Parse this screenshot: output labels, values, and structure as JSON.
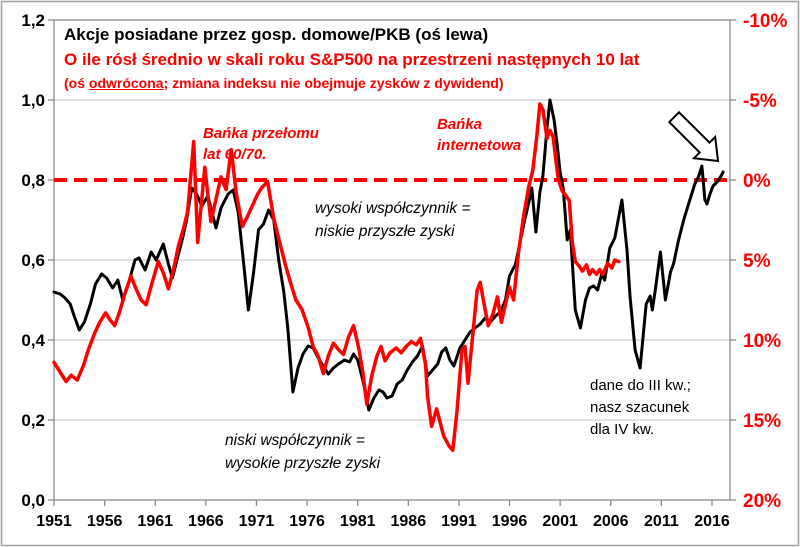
{
  "title": {
    "line1": "Akcje posiadane przez gosp. domowe/PKB (oś lewa)",
    "line2": "O ile rósł średnio w skali roku S&P500 na przestrzeni następnych 10 lat",
    "line3_prefix": "(oś ",
    "line3_underlined": "odwrócona",
    "line3_suffix": "; zmiana indeksu nie obejmuje zysków z dywidend)"
  },
  "annotations": {
    "bubble6070": [
      "Bańka przełomu",
      "lat 60/70."
    ],
    "internet": [
      "Bańka",
      "internetowa"
    ],
    "high_ratio": [
      "wysoki współczynnik =",
      "niskie przyszłe zyski"
    ],
    "low_ratio": [
      "niski współczynnik =",
      "wysokie przyszłe zyski"
    ],
    "note": [
      "dane do III kw.;",
      "nasz szacunek",
      "dla IV kw."
    ]
  },
  "colors": {
    "black_series": "#000000",
    "red_series": "#FF0000",
    "gridline": "#C6C6C6",
    "axis": "#8C8C8C",
    "figure_border": "#A0A0A0"
  },
  "chart_data": {
    "type": "line",
    "title": "Akcje posiadane przez gosp. domowe/PKB (oś lewa)",
    "subtitle": "O ile rósł średnio w skali roku S&P500 na przestrzeni następnych 10 lat (oś odwrócona; zmiana indeksu nie obejmuje zysków z dywidend)",
    "grid": true,
    "x_axis": {
      "years": [
        1951,
        1956,
        1961,
        1966,
        1971,
        1976,
        1981,
        1986,
        1991,
        1996,
        2001,
        2006,
        2011,
        2016
      ],
      "range": [
        1951,
        2017.8
      ]
    },
    "left_axis": {
      "labels": [
        "0,0",
        "0,2",
        "0,4",
        "0,6",
        "0,8",
        "1,0",
        "1,2"
      ],
      "values": [
        0,
        0.2,
        0.4,
        0.6,
        0.8,
        1.0,
        1.2
      ],
      "gridline_values": [
        0.2,
        0.4,
        0.6,
        1.0
      ],
      "range": [
        0,
        1.2
      ]
    },
    "right_axis": {
      "labels": [
        "-10%",
        "-5%",
        "0%",
        "5%",
        "10%",
        "15%",
        "20%"
      ],
      "values": [
        -10,
        -5,
        0,
        5,
        10,
        15,
        20
      ],
      "inverted": true,
      "range": [
        -10,
        20
      ]
    },
    "reference_line": {
      "left_value": 0.8,
      "right_value": 0,
      "label": "0%",
      "style": "dashed"
    },
    "series": [
      {
        "name": "Akcje posiadane przez gosp. domowe/PKB",
        "axis": "left",
        "color": "#000000",
        "width": 3,
        "points": [
          [
            1951.0,
            0.52
          ],
          [
            1951.6,
            0.515
          ],
          [
            1952.1,
            0.505
          ],
          [
            1952.6,
            0.49
          ],
          [
            1953.0,
            0.46
          ],
          [
            1953.5,
            0.425
          ],
          [
            1954.0,
            0.445
          ],
          [
            1954.6,
            0.49
          ],
          [
            1955.1,
            0.54
          ],
          [
            1955.7,
            0.565
          ],
          [
            1956.2,
            0.555
          ],
          [
            1956.8,
            0.53
          ],
          [
            1957.3,
            0.55
          ],
          [
            1957.8,
            0.5
          ],
          [
            1958.4,
            0.545
          ],
          [
            1959.0,
            0.6
          ],
          [
            1959.4,
            0.605
          ],
          [
            1960.0,
            0.575
          ],
          [
            1960.6,
            0.62
          ],
          [
            1961.1,
            0.6
          ],
          [
            1961.8,
            0.64
          ],
          [
            1962.3,
            0.59
          ],
          [
            1962.7,
            0.555
          ],
          [
            1963.2,
            0.605
          ],
          [
            1963.7,
            0.655
          ],
          [
            1964.1,
            0.7
          ],
          [
            1964.6,
            0.78
          ],
          [
            1965.1,
            0.765
          ],
          [
            1965.6,
            0.735
          ],
          [
            1966.2,
            0.76
          ],
          [
            1967.0,
            0.68
          ],
          [
            1967.5,
            0.73
          ],
          [
            1968.2,
            0.765
          ],
          [
            1968.7,
            0.775
          ],
          [
            1969.2,
            0.72
          ],
          [
            1969.7,
            0.6
          ],
          [
            1970.2,
            0.475
          ],
          [
            1970.7,
            0.565
          ],
          [
            1971.2,
            0.675
          ],
          [
            1971.7,
            0.69
          ],
          [
            1972.2,
            0.725
          ],
          [
            1972.7,
            0.7
          ],
          [
            1973.2,
            0.6
          ],
          [
            1973.7,
            0.52
          ],
          [
            1974.1,
            0.43
          ],
          [
            1974.6,
            0.27
          ],
          [
            1975.1,
            0.33
          ],
          [
            1975.6,
            0.365
          ],
          [
            1976.1,
            0.385
          ],
          [
            1976.6,
            0.38
          ],
          [
            1977.1,
            0.355
          ],
          [
            1977.6,
            0.335
          ],
          [
            1978.1,
            0.315
          ],
          [
            1978.6,
            0.33
          ],
          [
            1979.1,
            0.34
          ],
          [
            1979.7,
            0.35
          ],
          [
            1980.2,
            0.345
          ],
          [
            1980.6,
            0.365
          ],
          [
            1981.0,
            0.35
          ],
          [
            1981.5,
            0.3
          ],
          [
            1982.1,
            0.225
          ],
          [
            1982.6,
            0.255
          ],
          [
            1983.1,
            0.275
          ],
          [
            1983.5,
            0.27
          ],
          [
            1983.9,
            0.255
          ],
          [
            1984.4,
            0.26
          ],
          [
            1984.9,
            0.29
          ],
          [
            1985.4,
            0.3
          ],
          [
            1985.9,
            0.325
          ],
          [
            1986.4,
            0.345
          ],
          [
            1986.9,
            0.36
          ],
          [
            1987.4,
            0.385
          ],
          [
            1987.9,
            0.31
          ],
          [
            1988.4,
            0.325
          ],
          [
            1988.9,
            0.34
          ],
          [
            1989.3,
            0.37
          ],
          [
            1989.7,
            0.38
          ],
          [
            1990.1,
            0.35
          ],
          [
            1990.5,
            0.335
          ],
          [
            1991.1,
            0.38
          ],
          [
            1991.6,
            0.4
          ],
          [
            1992.1,
            0.42
          ],
          [
            1992.6,
            0.43
          ],
          [
            1993.1,
            0.44
          ],
          [
            1993.6,
            0.455
          ],
          [
            1994.1,
            0.445
          ],
          [
            1994.6,
            0.46
          ],
          [
            1995.1,
            0.47
          ],
          [
            1995.6,
            0.5
          ],
          [
            1996.0,
            0.56
          ],
          [
            1996.6,
            0.59
          ],
          [
            1997.0,
            0.64
          ],
          [
            1997.5,
            0.7
          ],
          [
            1998.0,
            0.755
          ],
          [
            1998.2,
            0.78
          ],
          [
            1998.6,
            0.67
          ],
          [
            1999.0,
            0.77
          ],
          [
            1999.3,
            0.81
          ],
          [
            1999.7,
            0.93
          ],
          [
            2000.0,
            1.0
          ],
          [
            2000.4,
            0.95
          ],
          [
            2000.7,
            0.89
          ],
          [
            2001.0,
            0.82
          ],
          [
            2001.3,
            0.78
          ],
          [
            2001.7,
            0.65
          ],
          [
            2002.0,
            0.675
          ],
          [
            2002.5,
            0.475
          ],
          [
            2003.0,
            0.43
          ],
          [
            2003.5,
            0.5
          ],
          [
            2003.9,
            0.53
          ],
          [
            2004.3,
            0.535
          ],
          [
            2004.7,
            0.525
          ],
          [
            2005.1,
            0.565
          ],
          [
            2005.4,
            0.55
          ],
          [
            2005.9,
            0.63
          ],
          [
            2006.4,
            0.655
          ],
          [
            2007.1,
            0.75
          ],
          [
            2007.6,
            0.625
          ],
          [
            2007.9,
            0.51
          ],
          [
            2008.4,
            0.375
          ],
          [
            2008.9,
            0.33
          ],
          [
            2009.5,
            0.49
          ],
          [
            2009.9,
            0.51
          ],
          [
            2010.1,
            0.475
          ],
          [
            2010.4,
            0.525
          ],
          [
            2010.9,
            0.62
          ],
          [
            2011.4,
            0.5
          ],
          [
            2011.9,
            0.57
          ],
          [
            2012.2,
            0.59
          ],
          [
            2012.7,
            0.65
          ],
          [
            2013.2,
            0.7
          ],
          [
            2013.5,
            0.725
          ],
          [
            2014.0,
            0.765
          ],
          [
            2014.3,
            0.79
          ],
          [
            2014.7,
            0.81
          ],
          [
            2015.0,
            0.835
          ],
          [
            2015.3,
            0.75
          ],
          [
            2015.5,
            0.74
          ],
          [
            2015.8,
            0.765
          ],
          [
            2016.1,
            0.785
          ],
          [
            2016.5,
            0.795
          ],
          [
            2016.9,
            0.81
          ],
          [
            2017.1,
            0.82
          ]
        ]
      },
      {
        "name": "O ile rósł średnio w skali roku S&P500 na przestrzeni następnych 10 lat",
        "axis": "right",
        "color": "#FF0000",
        "width": 3.5,
        "points": [
          [
            1951.0,
            11.4
          ],
          [
            1951.6,
            12.0
          ],
          [
            1952.2,
            12.6
          ],
          [
            1952.7,
            12.2
          ],
          [
            1953.3,
            12.5
          ],
          [
            1953.9,
            11.6
          ],
          [
            1954.4,
            10.6
          ],
          [
            1955.0,
            9.6
          ],
          [
            1955.5,
            8.9
          ],
          [
            1956.1,
            8.3
          ],
          [
            1956.6,
            8.8
          ],
          [
            1957.0,
            9.1
          ],
          [
            1957.5,
            8.2
          ],
          [
            1958.0,
            7.1
          ],
          [
            1958.6,
            6.0
          ],
          [
            1959.1,
            6.8
          ],
          [
            1959.6,
            7.5
          ],
          [
            1960.1,
            7.8
          ],
          [
            1960.7,
            6.4
          ],
          [
            1961.3,
            5.1
          ],
          [
            1961.8,
            5.8
          ],
          [
            1962.3,
            6.8
          ],
          [
            1962.8,
            5.6
          ],
          [
            1963.3,
            4.1
          ],
          [
            1963.8,
            3.0
          ],
          [
            1964.2,
            2.0
          ],
          [
            1964.8,
            -2.4
          ],
          [
            1965.2,
            3.9
          ],
          [
            1965.9,
            -0.8
          ],
          [
            1966.5,
            2.6
          ],
          [
            1967.0,
            1.2
          ],
          [
            1967.5,
            -0.2
          ],
          [
            1968.0,
            0.6
          ],
          [
            1968.5,
            -1.9
          ],
          [
            1969.0,
            0.8
          ],
          [
            1969.6,
            2.9
          ],
          [
            1970.1,
            2.3
          ],
          [
            1970.6,
            1.6
          ],
          [
            1971.1,
            0.9
          ],
          [
            1971.5,
            0.5
          ],
          [
            1972.1,
            0.1
          ],
          [
            1972.7,
            2.4
          ],
          [
            1973.3,
            3.9
          ],
          [
            1973.9,
            5.4
          ],
          [
            1974.4,
            6.5
          ],
          [
            1974.9,
            7.5
          ],
          [
            1975.5,
            8.1
          ],
          [
            1976.1,
            9.2
          ],
          [
            1976.6,
            10.4
          ],
          [
            1977.1,
            11.0
          ],
          [
            1977.6,
            12.1
          ],
          [
            1978.1,
            11.0
          ],
          [
            1978.6,
            10.2
          ],
          [
            1979.1,
            10.6
          ],
          [
            1979.6,
            10.9
          ],
          [
            1980.1,
            9.8
          ],
          [
            1980.6,
            9.1
          ],
          [
            1981.1,
            10.5
          ],
          [
            1981.5,
            12.0
          ],
          [
            1981.9,
            14.0
          ],
          [
            1982.4,
            12.2
          ],
          [
            1982.9,
            11.0
          ],
          [
            1983.3,
            10.4
          ],
          [
            1983.7,
            11.3
          ],
          [
            1984.2,
            10.8
          ],
          [
            1984.8,
            10.5
          ],
          [
            1985.3,
            10.8
          ],
          [
            1985.8,
            10.4
          ],
          [
            1986.3,
            10.1
          ],
          [
            1986.8,
            10.3
          ],
          [
            1987.2,
            9.9
          ],
          [
            1987.7,
            11.5
          ],
          [
            1987.9,
            13.5
          ],
          [
            1988.3,
            15.4
          ],
          [
            1988.8,
            14.3
          ],
          [
            1989.5,
            16.0
          ],
          [
            1990.0,
            16.6
          ],
          [
            1990.4,
            16.9
          ],
          [
            1990.8,
            14.5
          ],
          [
            1991.3,
            10.6
          ],
          [
            1991.6,
            10.4
          ],
          [
            1991.9,
            12.7
          ],
          [
            1992.3,
            10.1
          ],
          [
            1992.8,
            6.9
          ],
          [
            1993.1,
            6.4
          ],
          [
            1993.5,
            7.8
          ],
          [
            1993.9,
            9.1
          ],
          [
            1994.4,
            8.3
          ],
          [
            1994.8,
            7.3
          ],
          [
            1995.2,
            8.9
          ],
          [
            1995.7,
            7.5
          ],
          [
            1996.0,
            6.7
          ],
          [
            1996.4,
            7.5
          ],
          [
            1996.9,
            4.5
          ],
          [
            1997.4,
            2.2
          ],
          [
            1997.9,
            0.4
          ],
          [
            1998.3,
            -0.6
          ],
          [
            1998.7,
            -2.8
          ],
          [
            1999.0,
            -4.75
          ],
          [
            1999.3,
            -4.4
          ],
          [
            1999.7,
            -2.6
          ],
          [
            2000.0,
            -3.1
          ],
          [
            2000.3,
            -2.7
          ],
          [
            2000.8,
            -0.1
          ],
          [
            2001.2,
            0.7
          ],
          [
            2001.5,
            0.9
          ],
          [
            2001.9,
            1.3
          ],
          [
            2002.2,
            3.9
          ],
          [
            2002.5,
            5.1
          ],
          [
            2002.9,
            5.4
          ],
          [
            2003.2,
            5.7
          ],
          [
            2003.6,
            5.3
          ],
          [
            2003.9,
            5.9
          ],
          [
            2004.2,
            5.6
          ],
          [
            2004.6,
            5.9
          ],
          [
            2004.9,
            5.6
          ],
          [
            2005.2,
            5.9
          ],
          [
            2005.7,
            5.2
          ],
          [
            2006.1,
            5.5
          ],
          [
            2006.4,
            5.0
          ],
          [
            2006.8,
            5.1
          ]
        ]
      }
    ]
  }
}
